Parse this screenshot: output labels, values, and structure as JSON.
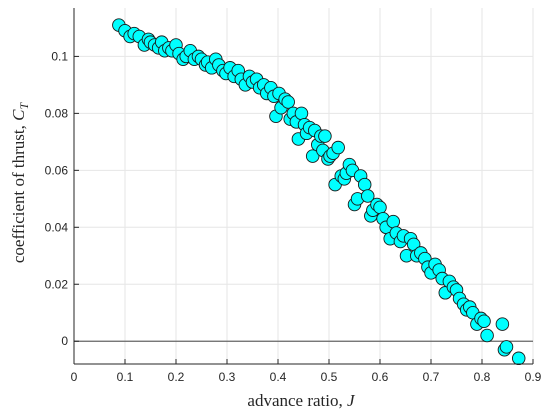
{
  "chart_data": {
    "type": "scatter",
    "title": "",
    "xlabel": "advance ratio, ",
    "xlabel_symbol": "J",
    "ylabel": "coefficient of thrust, ",
    "ylabel_symbol": "C",
    "ylabel_symbol_sub": "T",
    "xlim": [
      0,
      0.9
    ],
    "ylim": [
      -0.008,
      0.117
    ],
    "xticks": [
      0,
      0.1,
      0.2,
      0.3,
      0.4,
      0.5,
      0.6,
      0.7,
      0.8,
      0.9
    ],
    "xtick_labels": [
      "0",
      "0.1",
      "0.2",
      "0.3",
      "0.4",
      "0.5",
      "0.6",
      "0.7",
      "0.8",
      "0.9"
    ],
    "yticks": [
      0,
      0.02,
      0.04,
      0.06,
      0.08,
      0.1
    ],
    "ytick_labels": [
      "0",
      "0.02",
      "0.04",
      "0.06",
      "0.08",
      "0.1"
    ],
    "grid": true,
    "reference_line_y": 0,
    "marker_color": "#00ffff",
    "marker_edge_color": "#1a1a1a",
    "series": [
      {
        "x": [
          0.088,
          0.1,
          0.11,
          0.118,
          0.128,
          0.138,
          0.146,
          0.15,
          0.158,
          0.166,
          0.172,
          0.178,
          0.186,
          0.192,
          0.2,
          0.206,
          0.214,
          0.22,
          0.228,
          0.236,
          0.244,
          0.25,
          0.258,
          0.262,
          0.27,
          0.278,
          0.284,
          0.292,
          0.298,
          0.306,
          0.314,
          0.322,
          0.328,
          0.336,
          0.344,
          0.35,
          0.358,
          0.364,
          0.372,
          0.378,
          0.386,
          0.392,
          0.396,
          0.402,
          0.406,
          0.414,
          0.42,
          0.424,
          0.43,
          0.436,
          0.44,
          0.446,
          0.452,
          0.456,
          0.462,
          0.468,
          0.472,
          0.478,
          0.484,
          0.488,
          0.492,
          0.498,
          0.502,
          0.508,
          0.512,
          0.518,
          0.524,
          0.53,
          0.534,
          0.54,
          0.546,
          0.55,
          0.556,
          0.562,
          0.57,
          0.576,
          0.582,
          0.586,
          0.594,
          0.6,
          0.606,
          0.612,
          0.62,
          0.626,
          0.632,
          0.64,
          0.646,
          0.652,
          0.66,
          0.666,
          0.672,
          0.68,
          0.688,
          0.694,
          0.7,
          0.708,
          0.716,
          0.722,
          0.728,
          0.736,
          0.744,
          0.75,
          0.756,
          0.764,
          0.77,
          0.776,
          0.782,
          0.79,
          0.798,
          0.804,
          0.81,
          0.84,
          0.844,
          0.848,
          0.872
        ],
        "y": [
          0.111,
          0.109,
          0.107,
          0.108,
          0.107,
          0.104,
          0.106,
          0.105,
          0.104,
          0.103,
          0.105,
          0.102,
          0.103,
          0.102,
          0.104,
          0.101,
          0.099,
          0.1,
          0.102,
          0.099,
          0.1,
          0.099,
          0.097,
          0.098,
          0.096,
          0.099,
          0.097,
          0.095,
          0.094,
          0.096,
          0.093,
          0.095,
          0.092,
          0.09,
          0.093,
          0.091,
          0.092,
          0.089,
          0.09,
          0.087,
          0.089,
          0.086,
          0.079,
          0.087,
          0.082,
          0.085,
          0.084,
          0.078,
          0.08,
          0.077,
          0.071,
          0.08,
          0.076,
          0.073,
          0.075,
          0.065,
          0.074,
          0.069,
          0.072,
          0.067,
          0.072,
          0.064,
          0.065,
          0.066,
          0.055,
          0.068,
          0.058,
          0.057,
          0.059,
          0.062,
          0.06,
          0.048,
          0.05,
          0.058,
          0.055,
          0.051,
          0.044,
          0.046,
          0.048,
          0.047,
          0.043,
          0.04,
          0.036,
          0.042,
          0.038,
          0.035,
          0.037,
          0.03,
          0.036,
          0.034,
          0.03,
          0.031,
          0.029,
          0.026,
          0.024,
          0.027,
          0.025,
          0.022,
          0.017,
          0.021,
          0.019,
          0.018,
          0.015,
          0.013,
          0.011,
          0.012,
          0.01,
          0.006,
          0.008,
          0.007,
          0.002,
          0.006,
          -0.003,
          -0.002,
          -0.006
        ]
      }
    ]
  }
}
